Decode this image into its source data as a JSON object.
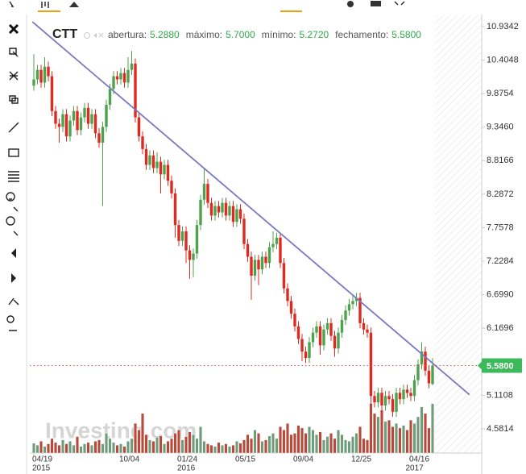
{
  "chart_data": {
    "type": "candlestick",
    "title": "CTT",
    "ohlc_fields": [
      {
        "label": "abertura:",
        "value": "5.2880"
      },
      {
        "label": "máximo:",
        "value": "5.7000"
      },
      {
        "label": "mínimo:",
        "value": "5.2720"
      },
      {
        "label": "fechamento:",
        "value": "5.5800"
      }
    ],
    "watermark": "Investing.com",
    "categories": [
      "04/19",
      null,
      null,
      null,
      null,
      null,
      null,
      null,
      null,
      null,
      null,
      null,
      null,
      null,
      null,
      null,
      null,
      null,
      null,
      null,
      null,
      null,
      null,
      null,
      "10/04",
      null,
      null,
      null,
      null,
      null,
      null,
      null,
      null,
      null,
      null,
      null,
      null,
      null,
      null,
      null,
      "01/24",
      null,
      null,
      null,
      null,
      null,
      null,
      null,
      null,
      null,
      null,
      null,
      null,
      null,
      null,
      null,
      "05/15",
      null,
      null,
      null,
      null,
      null,
      null,
      null,
      null,
      null,
      null,
      null,
      null,
      null,
      null,
      null,
      "09/04",
      null,
      null,
      null,
      null,
      null,
      null,
      null,
      null,
      null,
      null,
      null,
      null,
      null,
      null,
      null,
      "12/25",
      null,
      null,
      null,
      null,
      null,
      null,
      null,
      null,
      null,
      null,
      null,
      null,
      null,
      null,
      null,
      "04/16",
      null,
      null,
      null,
      null,
      null,
      null
    ],
    "years": [
      "2015",
      null,
      null,
      null,
      null,
      null,
      null,
      null,
      null,
      null,
      null,
      null,
      null,
      null,
      null,
      null,
      null,
      null,
      null,
      null,
      null,
      null,
      null,
      null,
      null,
      null,
      null,
      null,
      null,
      null,
      null,
      null,
      null,
      null,
      null,
      null,
      null,
      null,
      null,
      null,
      "2016",
      null,
      null,
      null,
      null,
      null,
      null,
      null,
      null,
      null,
      null,
      null,
      null,
      null,
      null,
      null,
      null,
      null,
      null,
      null,
      null,
      null,
      null,
      null,
      null,
      null,
      null,
      null,
      null,
      null,
      null,
      null,
      null,
      null,
      null,
      null,
      null,
      null,
      null,
      null,
      null,
      null,
      null,
      null,
      null,
      null,
      null,
      null,
      null,
      null,
      null,
      null,
      null,
      null,
      null,
      null,
      null,
      null,
      null,
      null,
      null,
      null,
      null,
      "2017",
      null,
      null,
      null,
      null,
      null,
      null
    ],
    "open": [
      10.0,
      10.1,
      10.25,
      10.05,
      10.3,
      10.15,
      9.6,
      9.4,
      9.35,
      9.55,
      9.2,
      9.45,
      9.6,
      9.3,
      9.5,
      9.65,
      9.4,
      9.55,
      9.25,
      9.1,
      9.35,
      9.7,
      9.95,
      10.15,
      10.1,
      10.2,
      10.05,
      10.25,
      10.35,
      9.5,
      9.2,
      9.0,
      8.75,
      8.9,
      8.7,
      8.8,
      8.6,
      8.75,
      8.5,
      8.3,
      7.8,
      7.55,
      7.7,
      7.4,
      7.25,
      7.35,
      7.8,
      8.2,
      8.45,
      8.15,
      7.95,
      8.1,
      8.0,
      8.15,
      7.95,
      8.1,
      7.85,
      8.05,
      7.9,
      7.5,
      7.3,
      7.0,
      7.25,
      7.1,
      7.3,
      7.2,
      7.45,
      7.5,
      7.6,
      7.2,
      6.8,
      6.6,
      6.4,
      6.2,
      6.0,
      5.8,
      5.7,
      5.95,
      6.1,
      6.2,
      5.9,
      6.15,
      6.25,
      6.05,
      5.85,
      6.1,
      6.3,
      6.45,
      6.55,
      6.6,
      6.65,
      6.25,
      6.15,
      6.1,
      5.1,
      5.0,
      5.15,
      4.95,
      5.1,
      5.05,
      4.85,
      5.15,
      5.05,
      5.2,
      5.15,
      5.1,
      5.35,
      5.6,
      5.8,
      5.5,
      5.288
    ],
    "high": [
      10.5,
      10.33,
      10.33,
      10.45,
      10.38,
      10.23,
      9.68,
      9.48,
      9.63,
      9.63,
      9.53,
      9.68,
      9.68,
      9.58,
      9.73,
      9.73,
      9.63,
      9.63,
      9.33,
      9.43,
      9.78,
      10.03,
      10.23,
      10.23,
      10.28,
      10.28,
      10.45,
      10.55,
      10.43,
      9.58,
      9.28,
      9.08,
      8.98,
      8.98,
      8.95,
      8.88,
      8.83,
      8.83,
      8.58,
      8.38,
      7.88,
      7.78,
      7.78,
      7.48,
      7.43,
      7.88,
      8.28,
      8.7,
      8.53,
      8.23,
      8.18,
      8.18,
      8.23,
      8.23,
      8.18,
      8.18,
      8.13,
      8.13,
      7.98,
      7.58,
      7.38,
      7.33,
      7.33,
      7.38,
      7.38,
      7.53,
      7.7,
      7.68,
      7.68,
      7.28,
      6.88,
      6.68,
      6.48,
      6.28,
      6.08,
      5.88,
      6.03,
      6.18,
      6.28,
      6.28,
      6.23,
      6.33,
      6.33,
      6.13,
      6.18,
      6.38,
      6.53,
      6.63,
      6.68,
      6.73,
      6.73,
      6.33,
      6.23,
      6.18,
      5.18,
      5.23,
      5.23,
      5.18,
      5.18,
      5.13,
      5.23,
      5.23,
      5.28,
      5.28,
      5.23,
      5.43,
      5.68,
      5.95,
      5.88,
      5.58,
      5.7
    ],
    "low": [
      9.92,
      10.02,
      9.97,
      9.97,
      10.07,
      9.52,
      9.32,
      9.1,
      9.27,
      9.12,
      9.12,
      9.37,
      9.22,
      9.22,
      9.42,
      9.32,
      9.32,
      9.17,
      9.02,
      8.1,
      9.27,
      9.62,
      9.87,
      10.02,
      10.02,
      9.97,
      9.97,
      10.17,
      9.42,
      9.12,
      8.92,
      8.67,
      8.67,
      8.62,
      8.62,
      8.3,
      8.52,
      8.42,
      8.22,
      7.6,
      7.47,
      7.47,
      7.2,
      6.95,
      6.98,
      7.27,
      7.72,
      8.12,
      8.07,
      7.87,
      7.87,
      7.92,
      7.92,
      7.87,
      7.87,
      7.77,
      7.77,
      7.82,
      7.42,
      7.22,
      6.62,
      6.92,
      6.85,
      7.02,
      7.12,
      7.12,
      7.37,
      7.42,
      7.12,
      6.72,
      6.52,
      6.32,
      6.12,
      5.92,
      5.65,
      5.62,
      5.62,
      5.87,
      6.02,
      5.75,
      5.82,
      6.07,
      5.97,
      5.72,
      5.77,
      6.02,
      6.22,
      6.37,
      6.47,
      6.52,
      6.17,
      6.07,
      6.02,
      4.95,
      4.92,
      4.92,
      4.87,
      4.87,
      4.97,
      4.77,
      4.77,
      4.97,
      4.97,
      5.07,
      5.02,
      5.02,
      5.27,
      5.52,
      5.42,
      5.22,
      5.272
    ],
    "close": [
      10.1,
      10.25,
      10.05,
      10.3,
      10.15,
      9.6,
      9.4,
      9.35,
      9.55,
      9.2,
      9.45,
      9.6,
      9.3,
      9.5,
      9.65,
      9.4,
      9.55,
      9.25,
      9.1,
      9.35,
      9.7,
      9.95,
      10.15,
      10.1,
      10.2,
      10.05,
      10.25,
      10.35,
      9.5,
      9.2,
      9.0,
      8.75,
      8.9,
      8.7,
      8.8,
      8.6,
      8.75,
      8.5,
      8.3,
      7.8,
      7.55,
      7.7,
      7.4,
      7.25,
      7.35,
      7.8,
      8.2,
      8.45,
      8.15,
      7.95,
      8.1,
      8.0,
      8.15,
      7.95,
      8.1,
      7.85,
      8.05,
      7.9,
      7.5,
      7.3,
      7.0,
      7.25,
      7.1,
      7.3,
      7.2,
      7.45,
      7.5,
      7.6,
      7.2,
      6.8,
      6.6,
      6.4,
      6.2,
      6.0,
      5.8,
      5.7,
      5.95,
      6.1,
      6.2,
      5.9,
      6.15,
      6.25,
      6.05,
      5.85,
      6.1,
      6.3,
      6.45,
      6.55,
      6.6,
      6.65,
      6.25,
      6.15,
      6.1,
      5.1,
      5.0,
      5.15,
      4.95,
      5.1,
      5.05,
      4.85,
      5.15,
      5.05,
      5.2,
      5.15,
      5.1,
      5.35,
      5.6,
      5.8,
      5.5,
      5.3,
      5.58
    ],
    "volume": [
      15,
      12,
      18,
      10,
      14,
      22,
      16,
      12,
      20,
      14,
      18,
      12,
      25,
      10,
      14,
      16,
      12,
      18,
      20,
      14,
      30,
      22,
      16,
      12,
      14,
      10,
      18,
      22,
      45,
      35,
      60,
      28,
      20,
      18,
      24,
      26,
      14,
      18,
      22,
      30,
      35,
      20,
      25,
      32,
      28,
      22,
      40,
      18,
      14,
      12,
      10,
      16,
      12,
      14,
      10,
      12,
      18,
      15,
      20,
      28,
      22,
      35,
      30,
      18,
      20,
      26,
      30,
      22,
      40,
      35,
      45,
      28,
      30,
      42,
      38,
      30,
      40,
      35,
      28,
      32,
      20,
      25,
      30,
      22,
      35,
      28,
      20,
      18,
      25,
      30,
      40,
      22,
      20,
      75,
      60,
      55,
      65,
      48,
      50,
      40,
      45,
      38,
      42,
      35,
      50,
      45,
      55,
      70,
      60,
      38,
      75
    ],
    "up_color": "#4ea24e",
    "down_color": "#de2b22",
    "volume_up_color": "#6f9c7b",
    "volume_down_color": "#b9493b",
    "ylim": [
      4.199,
      11.125
    ],
    "yticks": [
      10.9342,
      10.4048,
      9.8754,
      {
        "value": 9.346,
        "label": "9.3460"
      },
      8.8166,
      8.2872,
      7.7578,
      7.2284,
      {
        "value": 6.699,
        "label": "6.6990"
      },
      6.1696,
      5.1108,
      4.5814
    ],
    "y2lim": [
      0,
      110
    ],
    "trendline": {
      "x": [
        -0.4,
        120.2
      ],
      "values": [
        11.01,
        5.12
      ],
      "color": "#7b78c0"
    },
    "last_price": {
      "value": 5.58,
      "label": "5.5800",
      "color": "#3cb95a"
    }
  }
}
